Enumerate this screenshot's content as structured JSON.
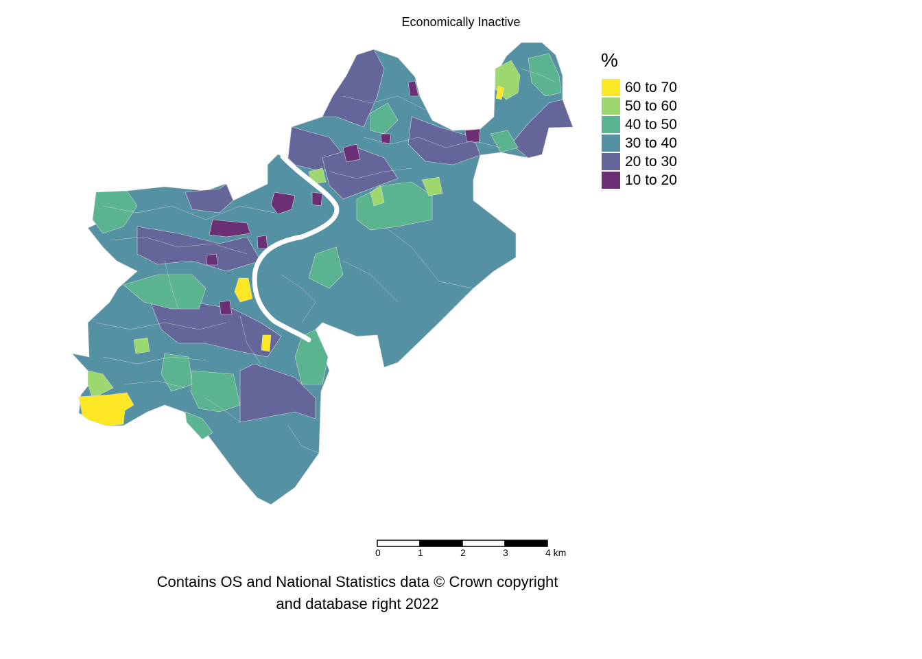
{
  "title": "Economically Inactive",
  "legend": {
    "title": "%",
    "items": [
      {
        "label": "60 to 70",
        "color": "#fde725"
      },
      {
        "label": "50 to 60",
        "color": "#9cd86e"
      },
      {
        "label": "40 to 50",
        "color": "#59b48f"
      },
      {
        "label": "30 to 40",
        "color": "#5491a2"
      },
      {
        "label": "20 to 30",
        "color": "#646599"
      },
      {
        "label": "10 to 20",
        "color": "#6b2f74"
      }
    ]
  },
  "scalebar": {
    "ticks": [
      "0",
      "1",
      "2",
      "3",
      "4 km"
    ]
  },
  "credit": {
    "line1": "Contains OS and National Statistics data © Crown copyright",
    "line2": "and database right 2022"
  },
  "colors": {
    "river": "#ffffff",
    "boundary": "#d9d9d9"
  }
}
